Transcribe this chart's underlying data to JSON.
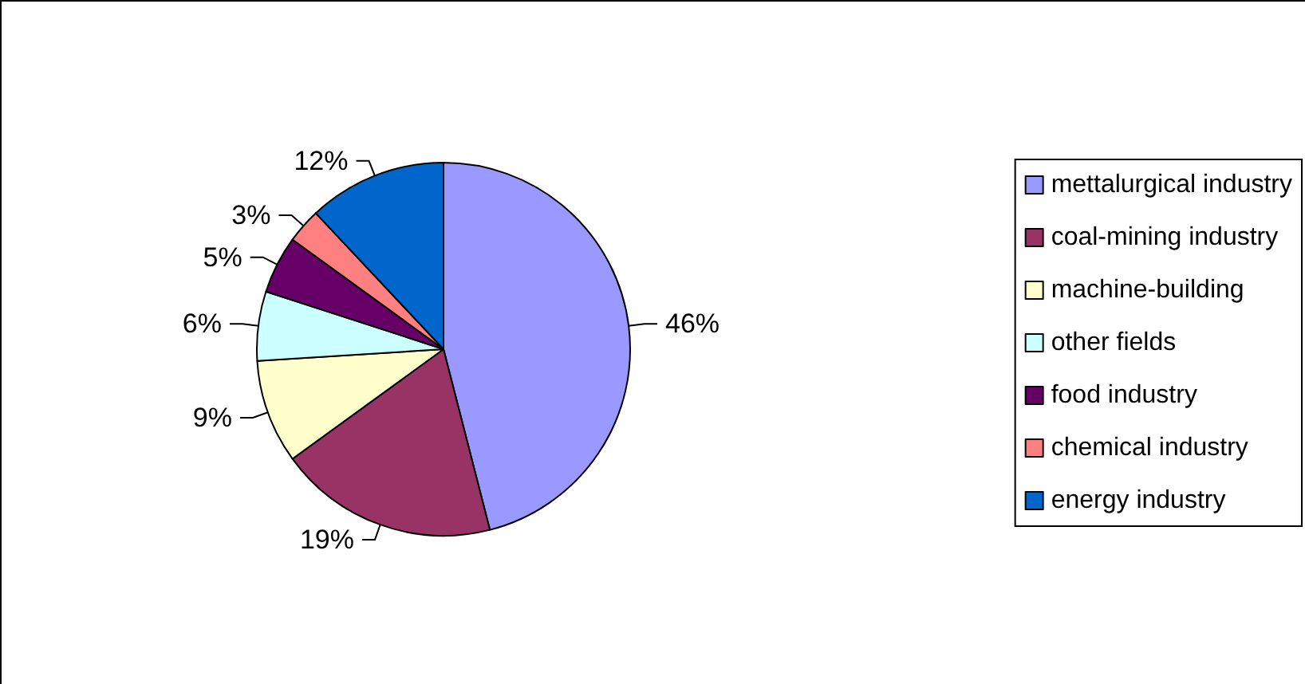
{
  "chart_data": {
    "type": "pie",
    "categories": [
      "mettalurgical industry",
      "coal-mining industry",
      "machine-building",
      "other fields",
      "food industry",
      "chemical industry",
      "energy industry"
    ],
    "values": [
      46,
      19,
      9,
      6,
      5,
      3,
      12
    ],
    "colors": [
      "#9999ff",
      "#993366",
      "#ffffcc",
      "#ccffff",
      "#660066",
      "#ff8080",
      "#0066cc"
    ],
    "value_labels": [
      "46%",
      "19%",
      "9%",
      "6%",
      "5%",
      "3%",
      "12%"
    ],
    "legend": "right"
  }
}
